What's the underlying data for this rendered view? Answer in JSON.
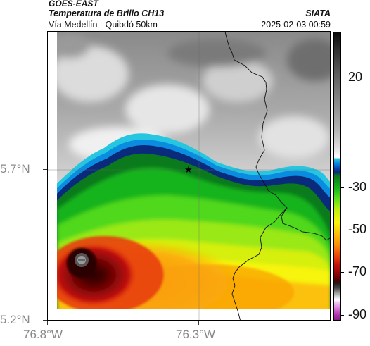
{
  "header": {
    "product": "GOES-EAST",
    "title": "Temperatura de Brillo CH13",
    "organization": "SIATA",
    "area": "Vía Medellín - Quibdó 50km",
    "timestamp": "2025-02-03 00:59"
  },
  "map": {
    "lat_ticks": [
      "5.7°N",
      "5.2°N"
    ],
    "lon_ticks": [
      "76.8°W",
      "76.3°W"
    ],
    "marker": "star",
    "grid": true
  },
  "colorbar": {
    "labels": [
      "20",
      "-30",
      "-50",
      "-70",
      "-90"
    ],
    "colors": {
      "warm_gray": "#9a9a9a",
      "cyan": "#26c6e0",
      "dark_blue": "#0a2a7c",
      "green": "#12b41e",
      "yellow": "#f7f40c",
      "orange": "#f98d08",
      "red": "#c0110c",
      "dark_red": "#4a0303",
      "magenta": "#b03ab0"
    }
  }
}
